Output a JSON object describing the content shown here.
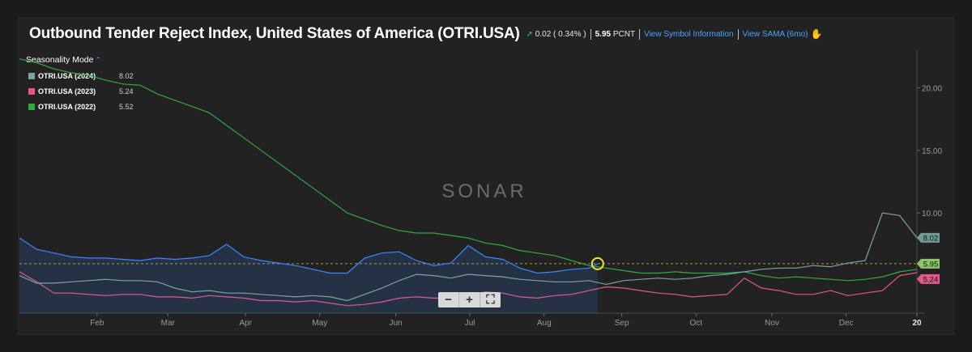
{
  "header": {
    "title": "Outbound Tender Reject Index, United States of America (OTRI.USA)",
    "change": "0.02 ( 0.34% )",
    "last_value": "5.95",
    "last_unit": "PCNT",
    "link_symbol_info": "View Symbol Information",
    "link_sama": "View SAMA (6mo)"
  },
  "mode_label": "Seasonality Mode",
  "legend": [
    {
      "name": "OTRI.USA (2024)",
      "value": "8.02"
    },
    {
      "name": "OTRI.USA (2023)",
      "value": "5.24"
    },
    {
      "name": "OTRI.USA (2022)",
      "value": "5.52"
    }
  ],
  "watermark": "SONAR",
  "zoom": {
    "minus": "−",
    "plus": "+",
    "fit": "⛶"
  },
  "colors": {
    "2024": "#7aa59e",
    "2023": "#e0598b",
    "2022": "#2faa3f",
    "2025": "#3a86ff"
  },
  "chart_data": {
    "type": "line",
    "x_ticks": [
      "Feb",
      "Mar",
      "Apr",
      "May",
      "Jun",
      "Jul",
      "Aug",
      "Sep",
      "Oct",
      "Nov",
      "Dec",
      "20"
    ],
    "y_ticks": [
      "10.00",
      "15.00",
      "20.00"
    ],
    "ylim": [
      2.0,
      23.0
    ],
    "grid": false,
    "reference_line": 5.95,
    "current_point": {
      "week": 33.5,
      "value": 5.95
    },
    "end_labels": [
      {
        "text": "8.02",
        "value": 8.02,
        "series": "2024"
      },
      {
        "text": "5.95",
        "value": 5.95,
        "series": "2025"
      },
      {
        "text": "5.24",
        "value": 5.24,
        "series": "2023"
      }
    ],
    "x_unit_note": "week index",
    "series": [
      {
        "name": "OTRI.USA (2022)",
        "key": "2022",
        "x": [
          0,
          1,
          2,
          3,
          4,
          5,
          6,
          7,
          8,
          9,
          10,
          11,
          12,
          13,
          14,
          15,
          16,
          17,
          18,
          19,
          20,
          21,
          22,
          23,
          24,
          25,
          26,
          27,
          28,
          29,
          30,
          31,
          32,
          33,
          34,
          35,
          36,
          37,
          38,
          39,
          40,
          41,
          42,
          43,
          44,
          45,
          46,
          47,
          48,
          49,
          50,
          51,
          52
        ],
        "y": [
          22.3,
          22.0,
          21.5,
          21.2,
          21.0,
          20.6,
          20.3,
          20.2,
          19.5,
          19.0,
          18.5,
          18.0,
          17.0,
          16.0,
          15.0,
          14.0,
          13.0,
          12.0,
          11.0,
          10.0,
          9.5,
          9.0,
          8.6,
          8.4,
          8.4,
          8.2,
          8.0,
          7.6,
          7.4,
          7.0,
          6.8,
          6.6,
          6.2,
          5.8,
          5.6,
          5.4,
          5.2,
          5.2,
          5.3,
          5.2,
          5.2,
          5.2,
          5.3,
          5.0,
          4.8,
          4.9,
          4.8,
          4.7,
          4.6,
          4.7,
          4.9,
          5.3,
          5.5
        ]
      },
      {
        "name": "OTRI.USA (2023)",
        "key": "2023",
        "x": [
          0,
          1,
          2,
          3,
          4,
          5,
          6,
          7,
          8,
          9,
          10,
          11,
          12,
          13,
          14,
          15,
          16,
          17,
          18,
          19,
          20,
          21,
          22,
          23,
          24,
          25,
          26,
          27,
          28,
          29,
          30,
          31,
          32,
          33,
          34,
          35,
          36,
          37,
          38,
          39,
          40,
          41,
          42,
          43,
          44,
          45,
          46,
          47,
          48,
          49,
          50,
          51,
          52
        ],
        "y": [
          5.3,
          4.5,
          3.6,
          3.6,
          3.5,
          3.4,
          3.5,
          3.5,
          3.3,
          3.3,
          3.2,
          3.4,
          3.3,
          3.2,
          3.0,
          3.0,
          2.9,
          3.0,
          2.8,
          2.6,
          2.7,
          2.9,
          3.2,
          3.3,
          3.2,
          3.2,
          3.4,
          3.7,
          3.6,
          3.3,
          3.2,
          3.4,
          3.5,
          3.8,
          4.1,
          4.0,
          3.8,
          3.6,
          3.5,
          3.3,
          3.4,
          3.5,
          4.8,
          4.0,
          3.8,
          3.5,
          3.5,
          3.8,
          3.4,
          3.6,
          3.8,
          5.0,
          5.24
        ]
      },
      {
        "name": "OTRI.USA (2024)",
        "key": "2024",
        "x": [
          0,
          1,
          2,
          3,
          4,
          5,
          6,
          7,
          8,
          9,
          10,
          11,
          12,
          13,
          14,
          15,
          16,
          17,
          18,
          19,
          20,
          21,
          22,
          23,
          24,
          25,
          26,
          27,
          28,
          29,
          30,
          31,
          32,
          33,
          34,
          35,
          36,
          37,
          38,
          39,
          40,
          41,
          42,
          43,
          44,
          45,
          46,
          47,
          48,
          49,
          50,
          51,
          52
        ],
        "y": [
          5.0,
          4.4,
          4.4,
          4.5,
          4.6,
          4.7,
          4.6,
          4.6,
          4.5,
          4.0,
          3.7,
          3.8,
          3.6,
          3.6,
          3.5,
          3.4,
          3.3,
          3.4,
          3.3,
          3.0,
          3.5,
          4.0,
          4.6,
          5.1,
          5.0,
          4.8,
          5.1,
          5.0,
          4.9,
          4.7,
          4.6,
          4.5,
          4.5,
          4.6,
          4.3,
          4.6,
          4.7,
          4.8,
          4.7,
          4.8,
          5.0,
          5.1,
          5.3,
          5.5,
          5.6,
          5.6,
          5.8,
          5.7,
          6.0,
          6.2,
          10.0,
          9.8,
          8.02
        ]
      },
      {
        "name": "",
        "key": "2025",
        "x": [
          0,
          1,
          2,
          3,
          4,
          5,
          6,
          7,
          8,
          9,
          10,
          11,
          12,
          13,
          14,
          15,
          16,
          17,
          18,
          19,
          20,
          21,
          22,
          23,
          24,
          25,
          26,
          27,
          28,
          29,
          30,
          31,
          32,
          33,
          33.5
        ],
        "y": [
          8.0,
          7.1,
          6.8,
          6.5,
          6.4,
          6.4,
          6.3,
          6.2,
          6.4,
          6.3,
          6.4,
          6.6,
          7.5,
          6.5,
          6.2,
          6.0,
          5.8,
          5.5,
          5.2,
          5.2,
          6.4,
          6.8,
          6.9,
          6.2,
          5.8,
          6.0,
          7.4,
          6.5,
          6.3,
          5.6,
          5.2,
          5.3,
          5.5,
          5.6,
          5.95
        ]
      }
    ]
  }
}
